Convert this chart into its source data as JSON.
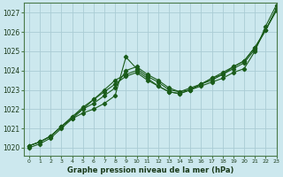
{
  "xlabel": "Graphe pression niveau de la mer (hPa)",
  "bg_color": "#cce8ee",
  "grid_color": "#aaccd4",
  "line_color": "#1a5c1a",
  "xlim": [
    -0.5,
    23
  ],
  "ylim": [
    1019.6,
    1027.5
  ],
  "yticks": [
    1020,
    1021,
    1022,
    1023,
    1024,
    1025,
    1026,
    1027
  ],
  "xticks": [
    0,
    1,
    2,
    3,
    4,
    5,
    6,
    7,
    8,
    9,
    10,
    11,
    12,
    13,
    14,
    15,
    16,
    17,
    18,
    19,
    20,
    21,
    22,
    23
  ],
  "series": [
    [
      1020.1,
      1020.3,
      1020.6,
      1021.1,
      1021.5,
      1021.8,
      1022.0,
      1022.3,
      1022.7,
      1024.7,
      1024.1,
      1023.7,
      1023.4,
      1023.0,
      1022.9,
      1023.0,
      1023.2,
      1023.4,
      1023.6,
      1023.9,
      1024.1,
      1025.0,
      1026.3,
      1027.4
    ],
    [
      1020.1,
      1020.3,
      1020.6,
      1021.1,
      1021.6,
      1022.0,
      1022.3,
      1022.7,
      1023.1,
      1024.0,
      1024.2,
      1023.8,
      1023.5,
      1023.1,
      1022.9,
      1023.1,
      1023.3,
      1023.5,
      1023.8,
      1024.1,
      1024.4,
      1025.1,
      1026.1,
      1027.2
    ],
    [
      1020.1,
      1020.3,
      1020.6,
      1021.1,
      1021.6,
      1022.1,
      1022.5,
      1022.9,
      1023.3,
      1023.7,
      1023.9,
      1023.5,
      1023.2,
      1022.9,
      1022.8,
      1023.0,
      1023.3,
      1023.6,
      1023.8,
      1024.2,
      1024.5,
      1025.2,
      1026.1,
      1027.2
    ],
    [
      1020.0,
      1020.2,
      1020.5,
      1021.0,
      1021.5,
      1022.0,
      1022.5,
      1023.0,
      1023.5,
      1023.8,
      1024.0,
      1023.6,
      1023.2,
      1022.9,
      1022.8,
      1023.0,
      1023.3,
      1023.6,
      1023.9,
      1024.2,
      1024.5,
      1025.2,
      1026.1,
      1027.1
    ]
  ]
}
